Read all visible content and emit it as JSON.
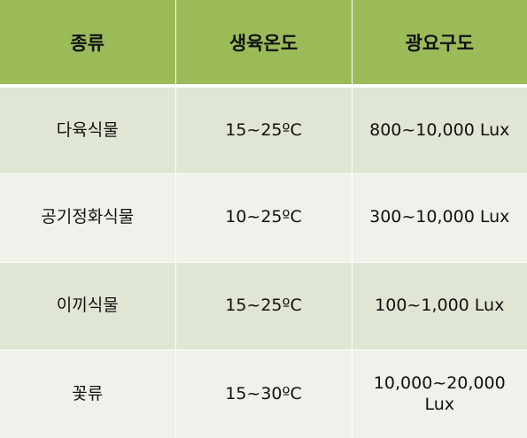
{
  "table": {
    "headers": [
      "종류",
      "생육온도",
      "광요구도"
    ],
    "rows": [
      [
        "다육식물",
        "15~25ºC",
        "800~10,000 Lux"
      ],
      [
        "공기정화식물",
        "10~25ºC",
        "300~10,000 Lux"
      ],
      [
        "이끼식물",
        "15~25ºC",
        "100~1,000 Lux"
      ],
      [
        "꽃류",
        "15~30ºC",
        "10,000~20,000 Lux"
      ]
    ]
  },
  "colors": {
    "header_bg": "#9bbb59",
    "row_odd_bg": "#dfe6d3",
    "row_even_bg": "#eff2ea"
  }
}
